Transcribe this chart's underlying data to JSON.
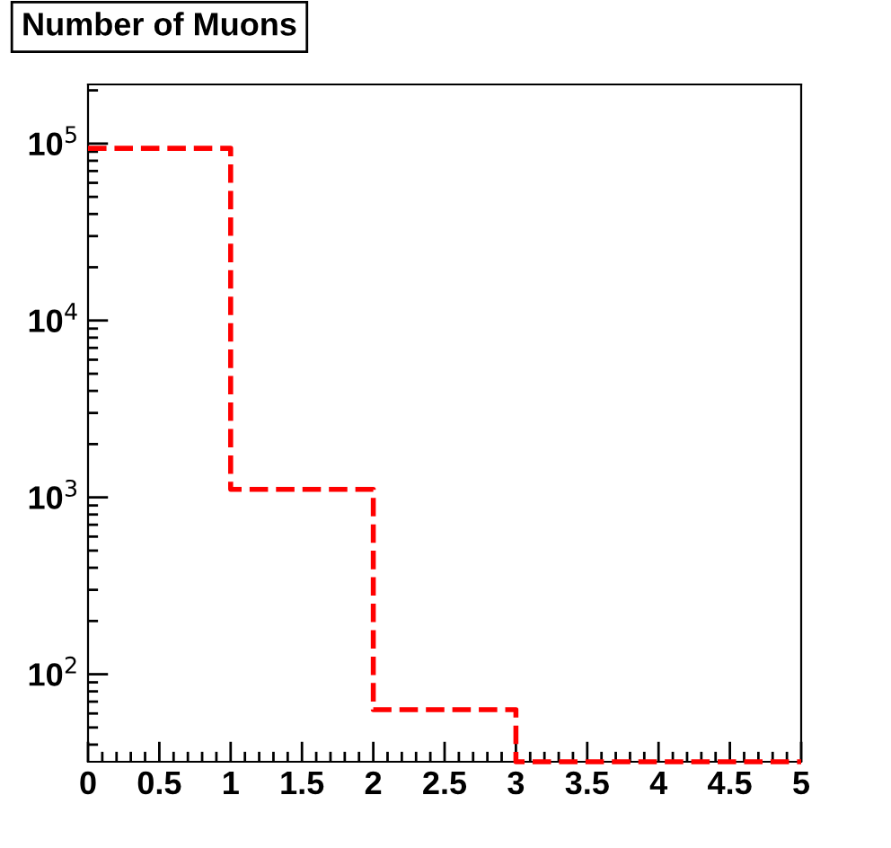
{
  "chart_data": {
    "type": "histogram",
    "title": "Number of Muons",
    "bins": [
      0,
      1,
      2,
      3,
      4,
      5
    ],
    "series": [
      {
        "color": "#ff0000",
        "values": [
          94000,
          1110,
          63,
          null,
          null
        ]
      }
    ],
    "line_style": "dashed",
    "log": "y",
    "xlim": [
      0,
      5
    ],
    "xticks": [
      0,
      0.5,
      1,
      1.5,
      2,
      2.5,
      3,
      3.5,
      4,
      4.5,
      5
    ],
    "ylim": [
      32,
      216000
    ],
    "yticks": [
      {
        "value": 100,
        "label": "10$^{2}$"
      },
      {
        "value": 1000,
        "label": "10$^{3}$"
      },
      {
        "value": 10000,
        "label": "10$^{4}$"
      },
      {
        "value": 100000,
        "label": "10$^{5}$"
      }
    ],
    "grid": false,
    "legend": false
  }
}
